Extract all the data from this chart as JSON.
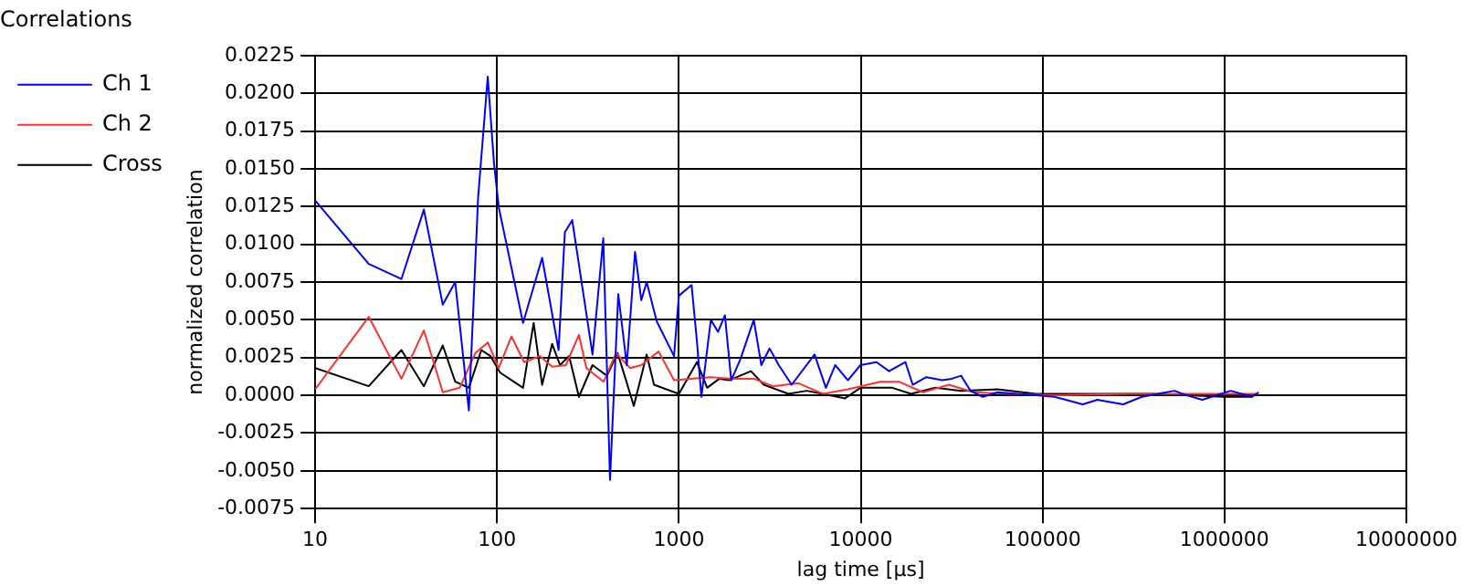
{
  "chart_data": {
    "type": "line",
    "title": "Correlations",
    "xlabel": "lag time [µs]",
    "ylabel": "normalized correlation",
    "log": "x",
    "xlim": [
      10,
      10000000
    ],
    "xticks": [
      10,
      100,
      1000,
      10000,
      100000,
      1000000,
      10000000
    ],
    "ylim": [
      -0.0075,
      0.0225
    ],
    "yticks": [
      {
        "value": -0.0075,
        "label": "-0.0075"
      },
      {
        "value": -0.005,
        "label": "-0.0050"
      },
      {
        "value": -0.0025,
        "label": "-0.0025"
      },
      {
        "value": 0,
        "label": "0.0000"
      },
      {
        "value": 0.0025,
        "label": "0.0025"
      },
      {
        "value": 0.005,
        "label": "0.0050"
      },
      {
        "value": 0.0075,
        "label": "0.0075"
      },
      {
        "value": 0.01,
        "label": "0.0100"
      },
      {
        "value": 0.0125,
        "label": "0.0125"
      },
      {
        "value": 0.015,
        "label": "0.0150"
      },
      {
        "value": 0.0175,
        "label": "0.0175"
      },
      {
        "value": 0.02,
        "label": "0.0200"
      },
      {
        "value": 0.0225,
        "label": "0.0225"
      }
    ],
    "grid": true,
    "legend": "top left",
    "marker": "none",
    "line_style": "solid",
    "series": [
      {
        "name": "Ch 1",
        "color": "#0000ff",
        "x": [
          10,
          19.7,
          29.8,
          39.6,
          50.3,
          58.9,
          70,
          78.7,
          88.9,
          96.3,
          102.4,
          139,
          177,
          218,
          236,
          259,
          335,
          384,
          418,
          464,
          517,
          574,
          621,
          665,
          755,
          940,
          1000,
          1174,
          1256,
          1329,
          1498,
          1641,
          1790,
          1940,
          2180,
          2580,
          2840,
          3150,
          3540,
          4170,
          5570,
          6430,
          7230,
          8500,
          9950,
          12200,
          14300,
          17600,
          19300,
          22900,
          28000,
          31700,
          35600,
          40100,
          46800,
          56600,
          72000,
          92000,
          116000,
          134000,
          166000,
          200000,
          277000,
          351000,
          531000,
          620000,
          755000,
          1080000,
          1420000,
          1540000
        ],
        "values": [
          0.0129,
          0.0087,
          0.0077,
          0.0123,
          0.006,
          0.0075,
          -0.001,
          0.0131,
          0.0211,
          0.0153,
          0.0124,
          0.0048,
          0.0091,
          0.003,
          0.0108,
          0.0116,
          0.0027,
          0.0104,
          -0.0056,
          0.0067,
          0.002,
          0.0095,
          0.0063,
          0.0075,
          0.0049,
          0.0026,
          0.0066,
          0.0073,
          0.0036,
          -0.0001,
          0.005,
          0.0042,
          0.0053,
          0.001,
          0.0024,
          0.005,
          0.002,
          0.0031,
          0.002,
          0.0007,
          0.0027,
          0.0005,
          0.002,
          0.001,
          0.002,
          0.0022,
          0.0016,
          0.0022,
          0.0007,
          0.0012,
          0.001,
          0.0011,
          0.0013,
          0.0003,
          -0.0001,
          0.0002,
          0.0001,
          0,
          -0.0001,
          -0.0003,
          -0.0006,
          -0.0003,
          -0.0006,
          -0.0001,
          0.0003,
          0,
          -0.0003,
          0.0003,
          -0.0001,
          0.0002
        ]
      },
      {
        "name": "Ch 2",
        "color": "#ff3030",
        "x": [
          10,
          19.7,
          29.8,
          39.6,
          50.3,
          62.3,
          76,
          89,
          102,
          120,
          141,
          172,
          201,
          239,
          282,
          310,
          386,
          451,
          540,
          621,
          773,
          940,
          1174,
          1498,
          1970,
          2580,
          3290,
          4530,
          6200,
          8500,
          12800,
          16200,
          22000,
          30500,
          41600,
          66000,
          116000,
          300000,
          1000000,
          1540000
        ],
        "values": [
          0.0004,
          0.0052,
          0.0011,
          0.0043,
          0.0002,
          0.0005,
          0.0028,
          0.0035,
          0.0018,
          0.0039,
          0.0022,
          0.0026,
          0.0019,
          0.002,
          0.004,
          0.0018,
          0.0009,
          0.0028,
          0.0018,
          0.002,
          0.0029,
          0.001,
          0.0011,
          0.0012,
          0.0011,
          0.0011,
          0.0006,
          0.0008,
          0.0001,
          0.0004,
          0.0009,
          0.0009,
          0.0002,
          0.0007,
          0.0002,
          0.0001,
          0,
          0.0001,
          0.0001,
          0.0001
        ]
      },
      {
        "name": "Cross",
        "color": "#000000",
        "x": [
          10,
          19.7,
          29.8,
          39.6,
          50.3,
          58.9,
          70,
          82,
          92,
          104,
          139,
          159,
          177,
          201,
          222,
          249,
          282,
          335,
          402,
          460,
          509,
          565,
          665,
          730,
          853,
          1000,
          1256,
          1430,
          1670,
          1890,
          2490,
          2930,
          4000,
          5040,
          6200,
          8200,
          9950,
          14900,
          18900,
          25700,
          35600,
          56600,
          92000,
          200000,
          400000,
          1000000,
          1420000
        ],
        "values": [
          0.0018,
          0.0006,
          0.003,
          0.0006,
          0.0033,
          0.0009,
          0.0005,
          0.003,
          0.0026,
          0.0015,
          0.0005,
          0.0048,
          0.0007,
          0.0034,
          0.002,
          0.0026,
          -0.0001,
          0.002,
          0.0013,
          0.0028,
          0.0011,
          -0.0007,
          0.0027,
          0.0007,
          0.0004,
          0.0001,
          0.0022,
          0.0005,
          0.0011,
          0.001,
          0.0016,
          0.0007,
          0.0001,
          0.0003,
          0.0001,
          -0.0002,
          0.0005,
          0.0005,
          0.0001,
          0.0005,
          0.0003,
          0.0004,
          0.0001,
          0.0001,
          0.0001,
          -0.0001,
          -0.0001
        ]
      }
    ]
  }
}
